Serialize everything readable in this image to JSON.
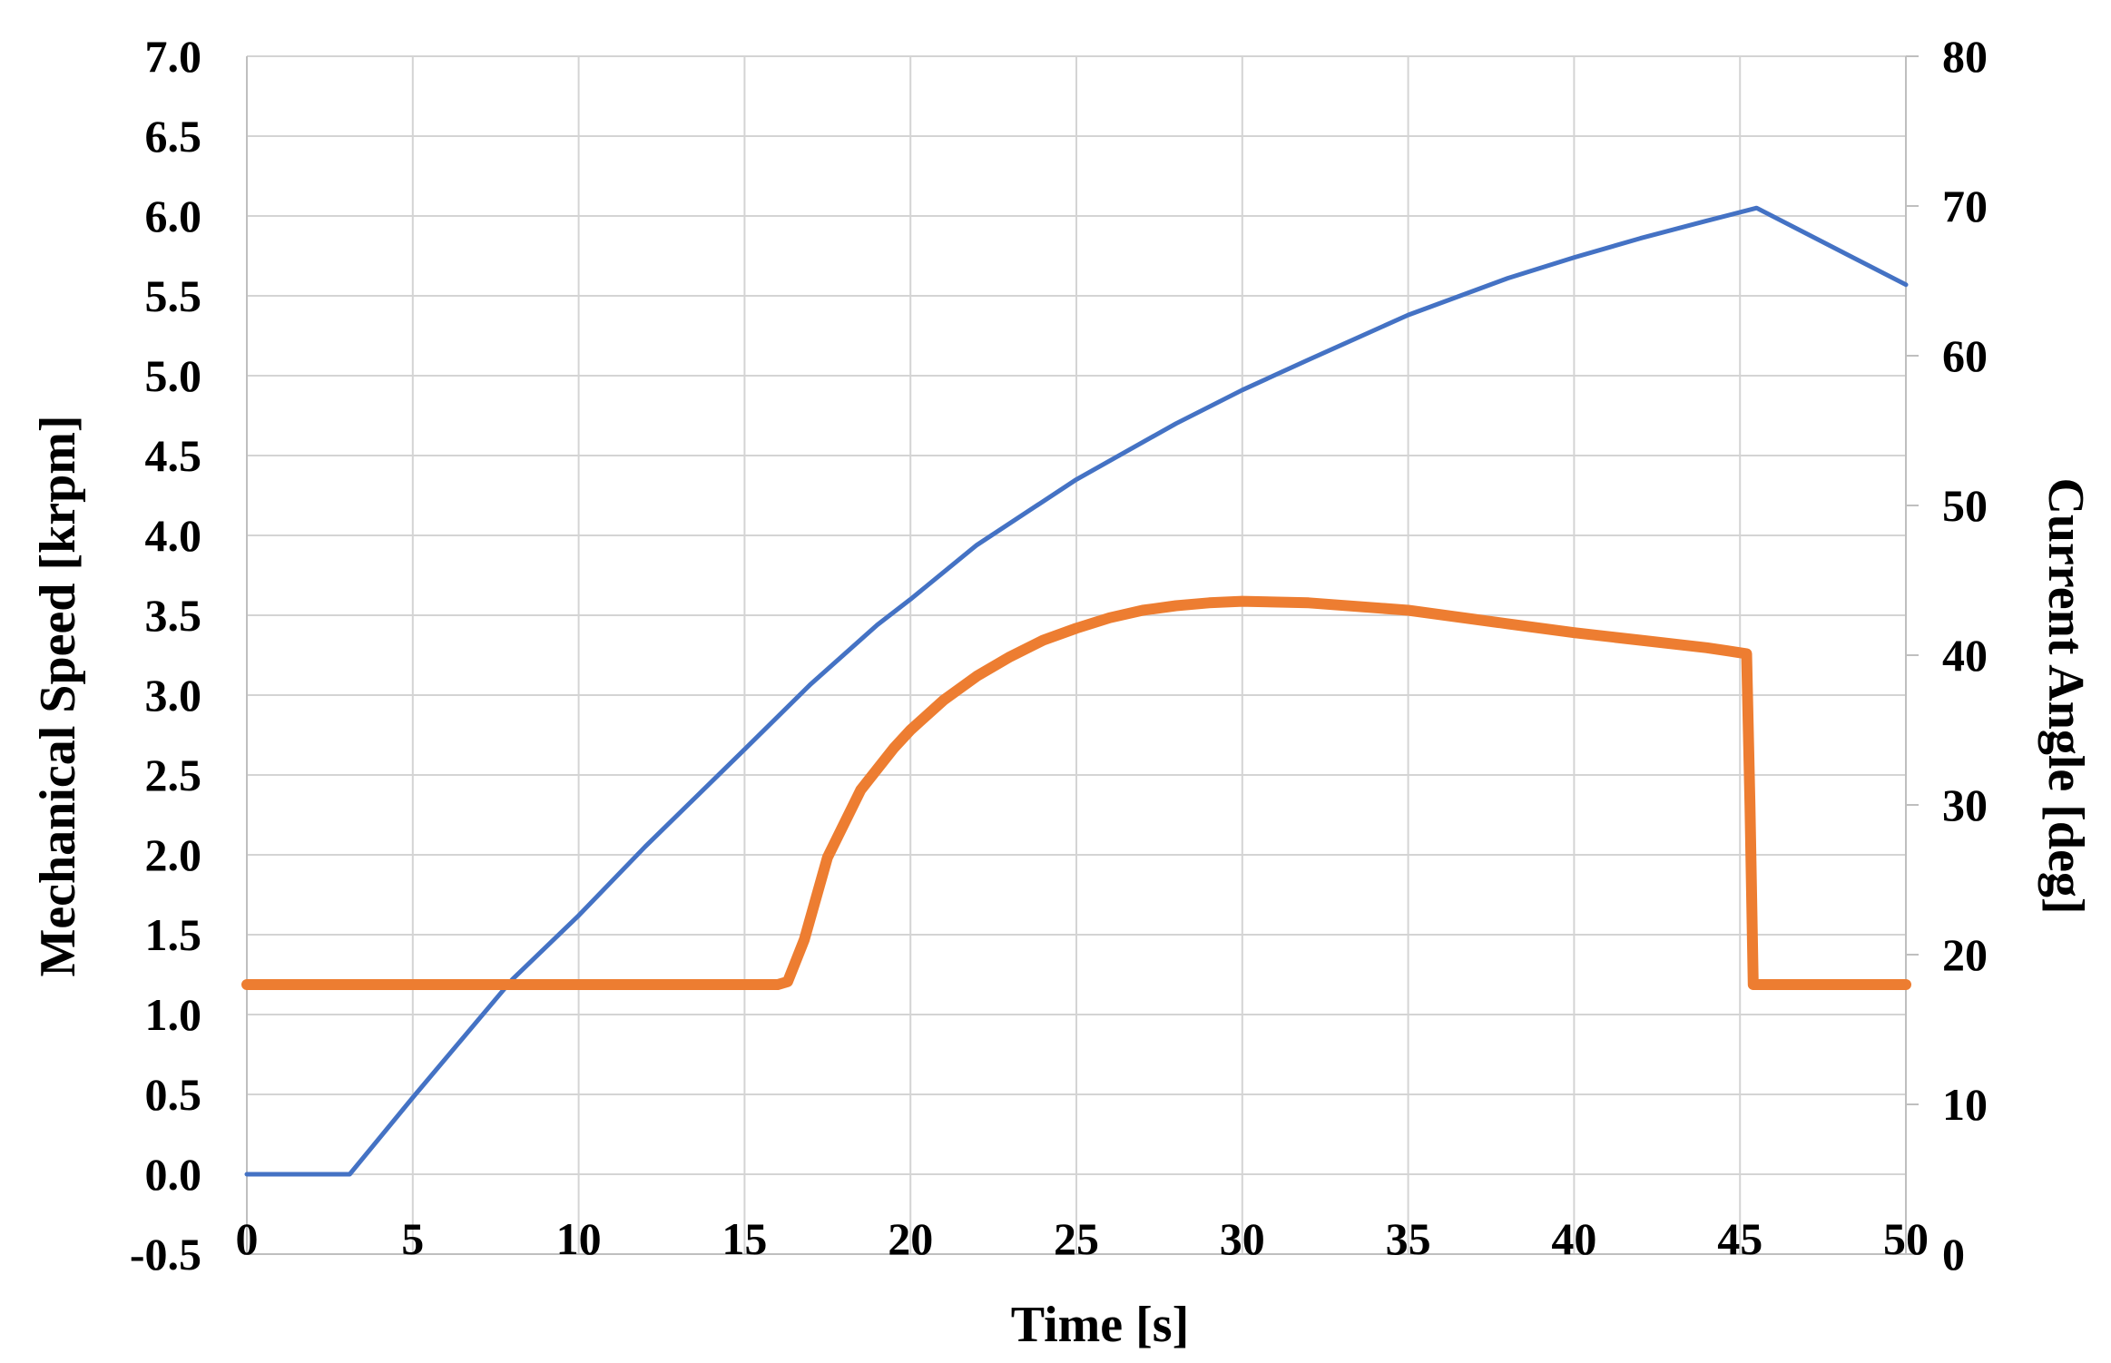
{
  "chart_data": {
    "type": "line",
    "xlabel": "Time [s]",
    "ylabel": "Mechanical Speed [krpm]",
    "y2label": "Current Angle [deg]",
    "xlim": [
      0,
      50
    ],
    "ylim": [
      -0.5,
      7.0
    ],
    "y2lim": [
      0,
      80
    ],
    "x_ticks": [
      0,
      5,
      10,
      15,
      20,
      25,
      30,
      35,
      40,
      45,
      50
    ],
    "y_ticks": [
      "-0.5",
      "0.0",
      "0.5",
      "1.0",
      "1.5",
      "2.0",
      "2.5",
      "3.0",
      "3.5",
      "4.0",
      "4.5",
      "5.0",
      "5.5",
      "6.0",
      "6.5",
      "7.0"
    ],
    "y2_ticks": [
      0,
      10,
      20,
      30,
      40,
      50,
      60,
      70,
      80
    ],
    "grid": true,
    "legend": "none",
    "series": [
      {
        "axis": "left",
        "color": "#4472c4",
        "x": [
          0,
          3.1,
          5,
          8,
          10,
          12,
          15,
          17,
          19,
          20,
          22,
          25,
          28,
          30,
          32,
          35,
          38,
          40,
          42,
          44,
          45.5,
          50
        ],
        "y": [
          0,
          0,
          0.48,
          1.22,
          1.62,
          2.05,
          2.66,
          3.07,
          3.44,
          3.6,
          3.94,
          4.35,
          4.7,
          4.91,
          5.1,
          5.38,
          5.61,
          5.74,
          5.86,
          5.97,
          6.05,
          5.57
        ]
      },
      {
        "axis": "right",
        "color": "#ed7d31",
        "x": [
          0,
          16,
          16.3,
          16.8,
          17.5,
          18.5,
          19.5,
          20,
          21,
          22,
          23,
          24,
          25,
          26,
          27,
          28,
          29,
          30,
          32,
          35,
          38,
          40,
          42,
          44,
          45.2,
          45.3,
          45.4,
          45.5,
          50
        ],
        "y": [
          18,
          18,
          18.2,
          21,
          26.5,
          31,
          33.8,
          35,
          37,
          38.6,
          39.9,
          41,
          41.8,
          42.5,
          43,
          43.3,
          43.5,
          43.6,
          43.5,
          43.0,
          42.1,
          41.5,
          41.0,
          40.5,
          40.1,
          30,
          18,
          18,
          18
        ]
      }
    ]
  }
}
